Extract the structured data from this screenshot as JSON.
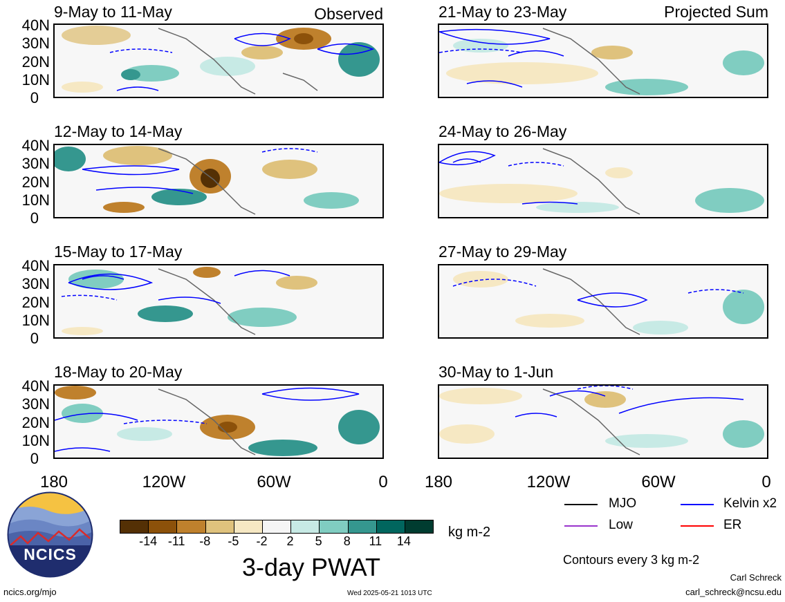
{
  "panels": [
    {
      "title": "9-May to 11-May",
      "header_right": "Observed"
    },
    {
      "title": "12-May to 14-May",
      "header_right": ""
    },
    {
      "title": "15-May to 17-May",
      "header_right": ""
    },
    {
      "title": "18-May to 20-May",
      "header_right": ""
    },
    {
      "title": "21-May to 23-May",
      "header_right": "Projected Sum"
    },
    {
      "title": "24-May to 26-May",
      "header_right": ""
    },
    {
      "title": "27-May to 29-May",
      "header_right": ""
    },
    {
      "title": "30-May to 1-Jun",
      "header_right": ""
    }
  ],
  "lat_ticks": [
    "40N",
    "30N",
    "20N",
    "10N",
    "0"
  ],
  "lon_ticks": [
    "180",
    "120W",
    "60W",
    "0"
  ],
  "colorbar": {
    "labels": [
      "-14",
      "-11",
      "-8",
      "-5",
      "-2",
      "2",
      "5",
      "8",
      "11",
      "14"
    ],
    "colors": [
      "#543005",
      "#8c510a",
      "#bf812d",
      "#dfc27d",
      "#f6e8c3",
      "#f5f5f5",
      "#c7eae5",
      "#80cdc1",
      "#35978f",
      "#01665e",
      "#003c30"
    ],
    "unit": "kg m-2",
    "title": "3-day PWAT"
  },
  "legend": {
    "items": [
      {
        "label": "MJO",
        "color": "#000000"
      },
      {
        "label": "Kelvin x2",
        "color": "#0000ff"
      },
      {
        "label": "Low",
        "color": "#9933cc"
      },
      {
        "label": "ER",
        "color": "#ff0000"
      }
    ],
    "contours_note": "Contours every 3 kg m-2"
  },
  "logo_text": "NCICS",
  "footer": {
    "site": "ncics.org/mjo",
    "timestamp": "Wed 2025-05-21 1013 UTC",
    "author": "Carl Schreck",
    "email": "carl_schreck@ncsu.edu"
  }
}
